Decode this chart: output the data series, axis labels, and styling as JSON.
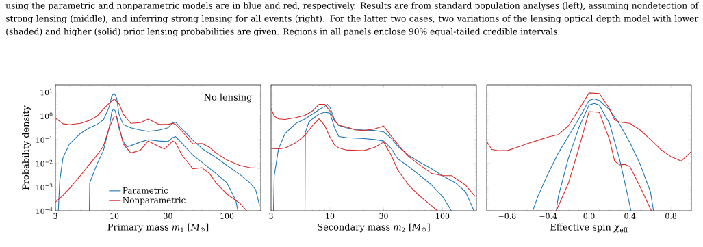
{
  "chart_data": [
    {
      "type": "line",
      "log": "xy",
      "xlabel": "Primary mass *m*$_{1}$ [*M*$_{⊙}$]",
      "ylabel": "Probability density",
      "annotations": [
        "using the parametric and nonparametric models are in blue and red, respectively. Results are from standard population analyses (left), assuming nondetection of strong lensing (middle), and inferring strong lensing for all events (right). For the latter two cases, two variations of the lensing optical depth model with lower (shaded) and higher (solid) prior lensing probabilities are given. Regions in all panels enclose 90% equal-tailed credible intervals.",
        "No lensing"
      ],
      "xlim": [
        3,
        200
      ],
      "ylim": [
        0.0001,
        20
      ],
      "xticks": [
        3,
        10,
        30,
        100
      ],
      "yticks": [
        {
          "value": 0.0001,
          "label": "10$^{−4}$"
        },
        {
          "value": 0.001,
          "label": "10$^{−3}$"
        },
        {
          "value": 0.01,
          "label": "10$^{−2}$"
        },
        {
          "value": 0.1,
          "label": "10$^{−1}$"
        },
        {
          "value": 1,
          "label": "10$^{0}$"
        },
        {
          "value": 10,
          "label": "10$^{1}$"
        }
      ],
      "legend": "bottom",
      "series": [
        {
          "name": "Parametric",
          "color": "#1f77b4",
          "x": [
            3.18,
            3.28,
            3.5,
            4,
            5,
            6,
            7,
            8,
            9,
            9.5,
            10,
            10.5,
            11,
            12,
            14,
            17,
            20,
            25,
            30,
            33,
            35,
            40,
            50,
            60,
            80,
            100,
            130,
            160,
            180,
            195
          ],
          "values": [
            0.0001,
            0.0019,
            0.017,
            0.065,
            0.18,
            0.31,
            0.43,
            0.67,
            2.3,
            6.9,
            8.6,
            5.5,
            1.17,
            0.43,
            0.31,
            0.25,
            0.22,
            0.25,
            0.31,
            0.5,
            0.54,
            0.28,
            0.092,
            0.042,
            0.0173,
            0.0081,
            0.0034,
            0.0015,
            0.00078,
            0.00016
          ]
        },
        {
          "color": "#1f77b4",
          "x": [
            6.0,
            6.05,
            7,
            8,
            9,
            9.5,
            9.8,
            10.2,
            11,
            12,
            13,
            14,
            17,
            20,
            25,
            30,
            33,
            35,
            40,
            50,
            60,
            80,
            100,
            120,
            125
          ],
          "values": [
            0.0001,
            0.0015,
            0.0089,
            0.034,
            0.31,
            1.46,
            1.9,
            1.6,
            0.31,
            0.082,
            0.049,
            0.055,
            0.078,
            0.098,
            0.086,
            0.082,
            0.12,
            0.133,
            0.068,
            0.0216,
            0.011,
            0.0037,
            0.0015,
            0.00027,
            0.0001
          ]
        },
        {
          "name": "Nonparametric",
          "color": "#d62728",
          "x": [
            3,
            3.5,
            4,
            5,
            6,
            7,
            8,
            9,
            10,
            11,
            12,
            14,
            17,
            20,
            25,
            30,
            33,
            35,
            40,
            50,
            60,
            70,
            80,
            100,
            130,
            160,
            195
          ],
          "values": [
            0.8,
            0.46,
            0.42,
            0.48,
            0.63,
            0.96,
            1.9,
            3.3,
            5.1,
            3.2,
            1.17,
            0.48,
            0.51,
            0.72,
            0.43,
            0.43,
            0.48,
            0.43,
            0.22,
            0.065,
            0.068,
            0.047,
            0.027,
            0.0138,
            0.0081,
            0.0065,
            0.0062
          ]
        },
        {
          "color": "#d62728",
          "x": [
            3,
            3.5,
            4,
            5,
            6,
            7,
            8,
            9,
            10,
            10.5,
            11,
            12,
            14,
            17,
            20,
            25,
            28,
            30,
            33,
            35,
            40,
            50,
            60,
            70,
            80,
            100,
            130,
            150
          ],
          "values": [
            0.00023,
            0.00044,
            0.00087,
            0.003,
            0.0089,
            0.0216,
            0.052,
            0.31,
            0.98,
            0.96,
            0.385,
            0.065,
            0.027,
            0.035,
            0.086,
            0.05,
            0.04,
            0.055,
            0.086,
            0.074,
            0.0216,
            0.0058,
            0.0065,
            0.0037,
            0.0015,
            0.0005,
            0.00021,
            0.0001
          ]
        }
      ]
    },
    {
      "type": "line",
      "log": "xy",
      "xlabel": "Secondary mass *m*$_{2}$ [*M*$_{⊙}$]",
      "tick_labels": "x",
      "xlim": [
        3,
        200
      ],
      "ylim": [
        0.0001,
        20
      ],
      "xticks": [
        3,
        10,
        30,
        100
      ],
      "yticks": [
        {
          "value": 0.0001,
          "label": null
        },
        {
          "value": 0.001,
          "label": null
        },
        {
          "value": 0.01,
          "label": null
        },
        {
          "value": 0.1,
          "label": null
        },
        {
          "value": 1,
          "label": null
        },
        {
          "value": 10,
          "label": null
        }
      ],
      "series": [
        {
          "color": "#1f77b4",
          "x": [
            3.15,
            3.2,
            3.5,
            4,
            5,
            6,
            7,
            8,
            9,
            9.5,
            10,
            11,
            12,
            14,
            17,
            20,
            25,
            30,
            35,
            40,
            50,
            60,
            80,
            100,
            130,
            160,
            190
          ],
          "values": [
            0.0001,
            0.003,
            0.042,
            0.18,
            0.48,
            0.74,
            1.17,
            1.8,
            2.5,
            3.0,
            2.3,
            0.67,
            0.385,
            0.31,
            0.26,
            0.25,
            0.24,
            0.21,
            0.113,
            0.052,
            0.0216,
            0.0124,
            0.0058,
            0.003,
            0.0015,
            0.00063,
            0.0001
          ]
        },
        {
          "color": "#1f77b4",
          "x": [
            6.0,
            6.05,
            6.5,
            7,
            8,
            9,
            10,
            11,
            12,
            14,
            20,
            25,
            30,
            35,
            40,
            50,
            60,
            80,
            100,
            120
          ],
          "values": [
            0.0001,
            0.2,
            0.54,
            0.74,
            1.17,
            1.4,
            1.3,
            0.31,
            0.133,
            0.12,
            0.11,
            0.1,
            0.086,
            0.042,
            0.0155,
            0.0072,
            0.0037,
            0.0012,
            0.0004,
            0.0001
          ]
        },
        {
          "color": "#d62728",
          "x": [
            3,
            3.2,
            3.5,
            4,
            5,
            6,
            7,
            8,
            9,
            10,
            11,
            12,
            14,
            17,
            20,
            25,
            30,
            35,
            40,
            50,
            60,
            80,
            100,
            120,
            160,
            195
          ],
          "values": [
            2.0,
            0.96,
            0.74,
            0.7,
            0.84,
            1.05,
            1.6,
            3.0,
            3.0,
            1.6,
            0.6,
            0.4,
            0.34,
            0.25,
            0.24,
            0.28,
            0.37,
            0.14,
            0.063,
            0.019,
            0.01,
            0.0037,
            0.003,
            0.003,
            0.0012,
            0.0004
          ]
        },
        {
          "color": "#d62728",
          "x": [
            3,
            3.5,
            4,
            5,
            6,
            7,
            8,
            9,
            10,
            11,
            12,
            14,
            20,
            25,
            30,
            35,
            40,
            50,
            60,
            80,
            90
          ],
          "values": [
            0.042,
            0.04,
            0.044,
            0.074,
            0.15,
            0.385,
            0.74,
            0.385,
            0.127,
            0.059,
            0.044,
            0.036,
            0.034,
            0.047,
            0.078,
            0.0216,
            0.0052,
            0.0012,
            0.0005,
            0.00016,
            0.0001
          ]
        }
      ]
    },
    {
      "type": "line",
      "log": "y",
      "xlabel": "Effective spin *χ*$_{eff}$",
      "tick_labels": "x",
      "xlim": [
        -1,
        1
      ],
      "ylim": [
        0.0001,
        20
      ],
      "xticks": [
        {
          "value": -0.8,
          "label": "−0.8"
        },
        {
          "value": -0.4,
          "label": "−0.4"
        },
        {
          "value": 0.0,
          "label": "0.0"
        },
        {
          "value": 0.4,
          "label": "0.4"
        },
        {
          "value": 0.8,
          "label": "0.8"
        }
      ],
      "yticks": [
        {
          "value": 0.0001,
          "label": null
        },
        {
          "value": 0.001,
          "label": null
        },
        {
          "value": 0.01,
          "label": null
        },
        {
          "value": 0.1,
          "label": null
        },
        {
          "value": 1,
          "label": null
        },
        {
          "value": 10,
          "label": null
        }
      ],
      "series": [
        {
          "color": "#1f77b4",
          "x": [
            -0.55,
            -0.5,
            -0.4,
            -0.3,
            -0.2,
            -0.1,
            0,
            0.05,
            0.1,
            0.2,
            0.3,
            0.4,
            0.5,
            0.6,
            0.63
          ],
          "values": [
            0.0001,
            0.0004,
            0.0037,
            0.027,
            0.14,
            0.74,
            4.4,
            5.1,
            4.4,
            1.8,
            0.43,
            0.074,
            0.0089,
            0.00063,
            0.0001
          ]
        },
        {
          "color": "#1f77b4",
          "x": [
            -0.32,
            -0.3,
            -0.2,
            -0.1,
            0,
            0.05,
            0.1,
            0.2,
            0.3,
            0.38,
            0.41
          ],
          "values": [
            0.0001,
            0.0004,
            0.0173,
            0.31,
            2.8,
            3.3,
            2.8,
            0.48,
            0.0138,
            0.0004,
            0.0001
          ]
        },
        {
          "color": "#d62728",
          "x": [
            -1,
            -0.95,
            -0.9,
            -0.8,
            -0.7,
            -0.6,
            -0.5,
            -0.4,
            -0.3,
            -0.2,
            -0.1,
            0,
            0.1,
            0.2,
            0.25,
            0.3,
            0.4,
            0.5,
            0.6,
            0.7,
            0.8,
            0.9,
            1
          ],
          "values": [
            0.082,
            0.038,
            0.035,
            0.034,
            0.047,
            0.068,
            0.092,
            0.127,
            0.16,
            0.385,
            1.8,
            9.1,
            8.6,
            2.0,
            0.67,
            0.54,
            0.48,
            0.25,
            0.1,
            0.038,
            0.019,
            0.0124,
            0.031
          ]
        },
        {
          "color": "#d62728",
          "x": [
            -0.32,
            -0.2,
            -0.1,
            0,
            0.05,
            0.1,
            0.2,
            0.25,
            0.3,
            0.35,
            0.4,
            0.5,
            0.6,
            0.61
          ],
          "values": [
            0.0001,
            0.0015,
            0.042,
            1.5,
            1.46,
            1.4,
            0.1,
            0.0124,
            0.0085,
            0.0089,
            0.0072,
            0.001,
            0.00012,
            0.0001
          ]
        }
      ]
    }
  ]
}
